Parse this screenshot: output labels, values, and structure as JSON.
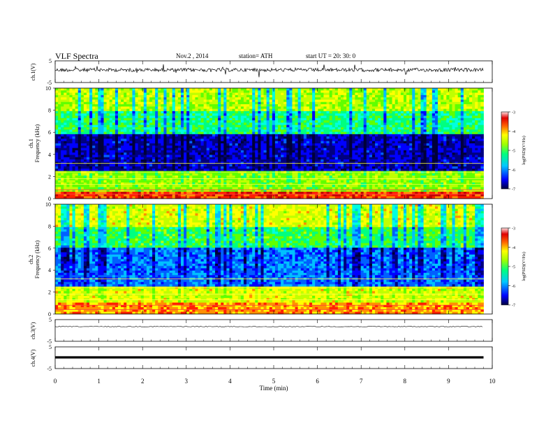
{
  "header": {
    "title": "VLF  Spectra",
    "date": "Nov.2  , 2014",
    "station": "station= ATH",
    "start": "start  UT  =   20: 30: 0"
  },
  "chart_data": [
    {
      "type": "line",
      "channel": "ch.1",
      "ylabel": "ch.1(V)",
      "ylim": [
        -5,
        5
      ],
      "yticks": [
        "5",
        "-5"
      ],
      "description_level": "noisy waveform around 0 V, amplitude ~1 V"
    },
    {
      "type": "heatmap",
      "channel": "ch.1",
      "ylabel": [
        "ch.1",
        "Frequency  (kHz)"
      ],
      "ylim": [
        0,
        10
      ],
      "yticks": [
        "0",
        "2",
        "4",
        "6",
        "8",
        "10"
      ],
      "colorbar": {
        "label": "log(PSD)(V²/Hz)",
        "range": [
          -7,
          -3
        ],
        "ticks": [
          "-3",
          "-4",
          "-5",
          "-6",
          "-7"
        ]
      }
    },
    {
      "type": "heatmap",
      "channel": "ch.2",
      "ylabel": [
        "ch.2",
        "Frequency  (kHz)"
      ],
      "ylim": [
        0,
        10
      ],
      "yticks": [
        "0",
        "2",
        "4",
        "6",
        "8",
        "10"
      ],
      "colorbar": {
        "label": "log(PSD)(V²/Hz)",
        "range": [
          -7,
          -3
        ],
        "ticks": [
          "-3",
          "-4",
          "-5",
          "-6",
          "-7"
        ]
      }
    },
    {
      "type": "line",
      "channel": "ch.3",
      "ylabel": "ch.3(V)",
      "ylim": [
        -5,
        5
      ],
      "yticks": [
        "5",
        "-5"
      ]
    },
    {
      "type": "line",
      "channel": "ch.4",
      "ylabel": "ch.4(V)",
      "ylim": [
        -5,
        5
      ],
      "yticks": [
        "5",
        "-5"
      ]
    }
  ],
  "xaxis": {
    "label": "Time  (min)",
    "range": [
      0,
      10
    ],
    "data_end": 9.8,
    "ticks": [
      "0",
      "1",
      "2",
      "3",
      "4",
      "5",
      "6",
      "7",
      "8",
      "9",
      "10"
    ]
  },
  "colors": {
    "scale": [
      "#000060",
      "#0000ff",
      "#0080ff",
      "#00ffff",
      "#00ff80",
      "#80ff00",
      "#ffff00",
      "#ff8000",
      "#ff0000",
      "#ffc0c0"
    ]
  }
}
